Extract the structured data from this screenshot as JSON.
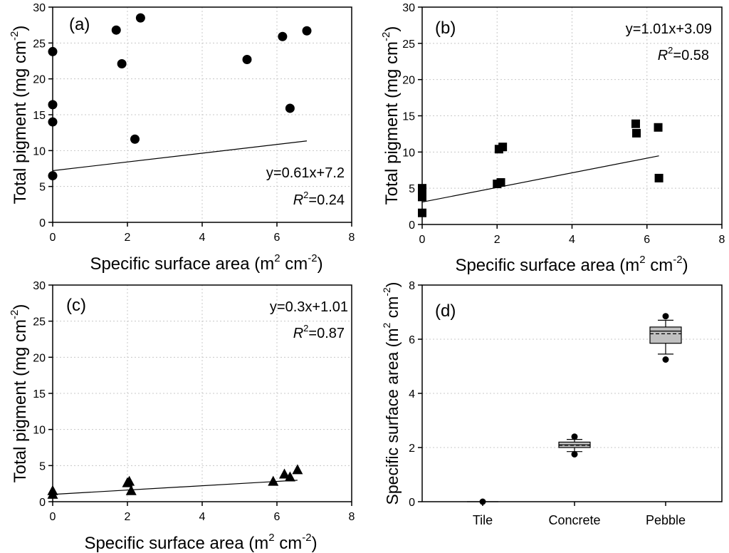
{
  "chart_data": [
    {
      "id": "a",
      "type": "scatter",
      "panel_label": "(a)",
      "xlabel": "Specific surface area (m",
      "xlabel_sup1": "2",
      "xlabel_mid": " cm",
      "xlabel_sup2": "-2",
      "xlabel_end": ")",
      "ylabel": "Total pigment (mg cm",
      "ylabel_sup": "-2",
      "ylabel_end": ")",
      "xlim": [
        0,
        8
      ],
      "ylim": [
        0,
        30
      ],
      "xticks": [
        0,
        2,
        4,
        6,
        8
      ],
      "yticks": [
        0,
        5,
        10,
        15,
        20,
        25,
        30
      ],
      "grid": true,
      "marker": "circle",
      "points": [
        [
          0,
          23.8
        ],
        [
          0,
          16.4
        ],
        [
          0,
          14.0
        ],
        [
          0,
          6.5
        ],
        [
          1.7,
          26.8
        ],
        [
          1.85,
          22.1
        ],
        [
          2.2,
          11.6
        ],
        [
          2.35,
          28.5
        ],
        [
          5.2,
          22.7
        ],
        [
          6.15,
          25.9
        ],
        [
          6.35,
          15.9
        ],
        [
          6.8,
          26.7
        ]
      ],
      "fit": {
        "slope": 0.61,
        "intercept": 7.2,
        "x_range": [
          0,
          6.8
        ]
      },
      "equation": "y=0.61x+7.2",
      "r2_label": "R",
      "r2_sup": "2",
      "r2_value": "=0.24"
    },
    {
      "id": "b",
      "type": "scatter",
      "panel_label": "(b)",
      "xlabel": "Specific surface area (m",
      "xlabel_sup1": "2",
      "xlabel_mid": " cm",
      "xlabel_sup2": "-2",
      "xlabel_end": ")",
      "ylabel": "Total pigment (mg cm",
      "ylabel_sup": "-2",
      "ylabel_end": ")",
      "xlim": [
        0,
        8
      ],
      "ylim": [
        0,
        30
      ],
      "xticks": [
        0,
        2,
        4,
        6,
        8
      ],
      "yticks": [
        0,
        5,
        10,
        15,
        20,
        25,
        30
      ],
      "grid": true,
      "marker": "square",
      "points": [
        [
          0,
          5.0
        ],
        [
          0,
          4.6
        ],
        [
          0,
          3.8
        ],
        [
          0,
          1.6
        ],
        [
          2.0,
          5.6
        ],
        [
          2.1,
          5.8
        ],
        [
          2.05,
          10.4
        ],
        [
          2.15,
          10.7
        ],
        [
          5.7,
          13.9
        ],
        [
          5.72,
          12.6
        ],
        [
          6.3,
          13.4
        ],
        [
          6.32,
          6.4
        ]
      ],
      "fit": {
        "slope": 1.01,
        "intercept": 3.09,
        "x_range": [
          0,
          6.32
        ]
      },
      "equation": "y=1.01x+3.09",
      "r2_label": "R",
      "r2_sup": "2",
      "r2_value": "=0.58"
    },
    {
      "id": "c",
      "type": "scatter",
      "panel_label": "(c)",
      "xlabel": "Specific surface area (m",
      "xlabel_sup1": "2",
      "xlabel_mid": " cm",
      "xlabel_sup2": "-2",
      "xlabel_end": ")",
      "ylabel": "Total pigment (mg cm",
      "ylabel_sup": "-2",
      "ylabel_end": ")",
      "xlim": [
        0,
        8
      ],
      "ylim": [
        0,
        30
      ],
      "xticks": [
        0,
        2,
        4,
        6,
        8
      ],
      "yticks": [
        0,
        5,
        10,
        15,
        20,
        25,
        30
      ],
      "grid": true,
      "marker": "triangle",
      "points": [
        [
          0,
          1.5
        ],
        [
          0,
          1.0
        ],
        [
          2.0,
          2.6
        ],
        [
          2.05,
          2.8
        ],
        [
          2.1,
          1.5
        ],
        [
          5.9,
          2.8
        ],
        [
          6.2,
          3.8
        ],
        [
          6.35,
          3.4
        ],
        [
          6.55,
          4.4
        ]
      ],
      "fit": {
        "slope": 0.3,
        "intercept": 1.01,
        "x_range": [
          0,
          6.55
        ]
      },
      "equation": "y=0.3x+1.01",
      "r2_label": "R",
      "r2_sup": "2",
      "r2_value": "=0.87"
    },
    {
      "id": "d",
      "type": "box",
      "panel_label": "(d)",
      "ylabel": "Specific surface area (m",
      "ylabel_sup1": "2",
      "ylabel_mid": " cm",
      "ylabel_sup2": "-2",
      "ylabel_end": ")",
      "ylim": [
        0,
        8
      ],
      "yticks": [
        0,
        2,
        4,
        6,
        8
      ],
      "grid": true,
      "categories": [
        "Tile",
        "Concrete",
        "Pebble"
      ],
      "boxes": [
        {
          "name": "Tile",
          "min": 0,
          "q1": 0,
          "median": 0,
          "mean": 0,
          "q3": 0,
          "max": 0,
          "outliers": [
            0
          ]
        },
        {
          "name": "Concrete",
          "min": 1.85,
          "q1": 2.0,
          "median": 2.1,
          "mean": 2.08,
          "q3": 2.2,
          "max": 2.3,
          "outliers": [
            1.75,
            2.4
          ]
        },
        {
          "name": "Pebble",
          "min": 5.45,
          "q1": 5.85,
          "median": 6.3,
          "mean": 6.2,
          "q3": 6.45,
          "max": 6.7,
          "outliers": [
            5.25,
            6.85
          ]
        }
      ],
      "box_fill": "#c0c0c0"
    }
  ]
}
